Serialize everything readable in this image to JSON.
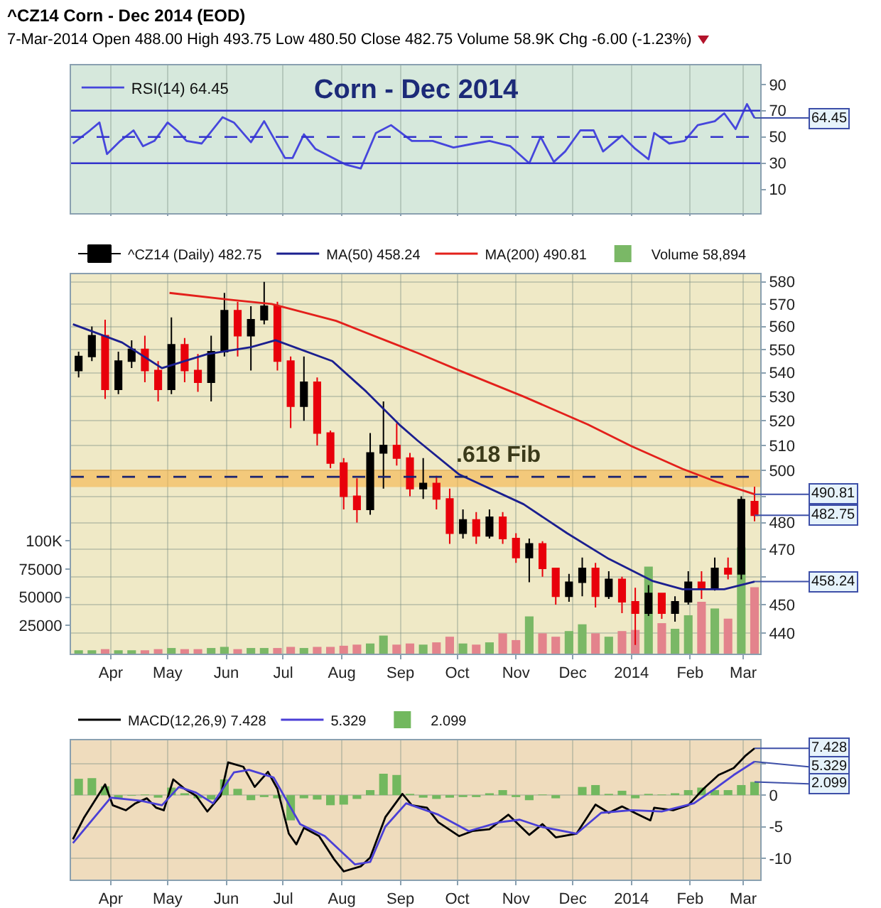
{
  "chart_data": [
    {
      "type": "line",
      "title": "^CZ14 Corn - Dec 2014 (EOD)",
      "subtitle": "7-Mar-2014 Open 488.00 High 493.75 Low 480.50 Close 482.75 Volume 58.9K Chg -6.00 (-1.23%)",
      "annotations": [
        "Corn - Dec 2014",
        {
          "text": "64.45",
          "x": "2014-03-07",
          "y": 64.45
        }
      ],
      "xlim": [
        "2013-03-11",
        "2014-03-10"
      ],
      "xticks": [
        {
          "value": "2013-04-01",
          "label": null
        },
        {
          "value": "2013-05-01",
          "label": null
        },
        {
          "value": "2013-06-01",
          "label": null
        },
        {
          "value": "2013-07-01",
          "label": null
        },
        {
          "value": "2013-08-01",
          "label": null
        },
        {
          "value": "2013-09-01",
          "label": null
        },
        {
          "value": "2013-10-01",
          "label": null
        },
        {
          "value": "2013-11-01",
          "label": null
        },
        {
          "value": "2013-12-01",
          "label": null
        },
        {
          "value": "2014-01-01",
          "label": null
        },
        {
          "value": "2014-02-01",
          "label": null
        },
        {
          "value": "2014-03-01",
          "label": null
        }
      ],
      "ylim": [
        -8,
        104.5
      ],
      "yticks": [
        10,
        30,
        50,
        70,
        90
      ],
      "ref_lines": [
        {
          "axis": "y",
          "value": 70,
          "color": "#3333cc",
          "line_style": "solid"
        },
        {
          "axis": "y",
          "value": 50,
          "color": "#3333cc",
          "line_style": "dashed"
        },
        {
          "axis": "y",
          "value": 30,
          "color": "#3333cc",
          "line_style": "solid"
        }
      ],
      "series": [
        {
          "name": "RSI(14) 64.45",
          "color": "#4646dc",
          "x": [
            "2013-03-12",
            "2013-03-21",
            "2013-03-26",
            "2013-03-30",
            "2013-04-06",
            "2013-04-13",
            "2013-04-18",
            "2013-04-24",
            "2013-05-01",
            "2013-05-06",
            "2013-05-11",
            "2013-05-19",
            "2013-05-30",
            "2013-06-05",
            "2013-06-14",
            "2013-06-21",
            "2013-07-02",
            "2013-07-06",
            "2013-07-12",
            "2013-07-18",
            "2013-07-26",
            "2013-08-03",
            "2013-08-11",
            "2013-08-19",
            "2013-08-27",
            "2013-09-07",
            "2013-09-18",
            "2013-09-29",
            "2013-10-10",
            "2013-10-18",
            "2013-10-29",
            "2013-11-08",
            "2013-11-14",
            "2013-11-21",
            "2013-11-27",
            "2013-12-05",
            "2013-12-12",
            "2013-12-17",
            "2013-12-27",
            "2014-01-03",
            "2014-01-10",
            "2014-01-13",
            "2014-01-21",
            "2014-01-29",
            "2014-02-05",
            "2014-02-14",
            "2014-02-19",
            "2014-02-25",
            "2014-03-03",
            "2014-03-07"
          ],
          "values": [
            45,
            55,
            61,
            37,
            47,
            55,
            43,
            47,
            61,
            55,
            47,
            45,
            65,
            61,
            46,
            62,
            34,
            34,
            52,
            41,
            35,
            29,
            26,
            53,
            59,
            47,
            47,
            42,
            45,
            47,
            43,
            30,
            50,
            31,
            39,
            55,
            55,
            39,
            51,
            41,
            33,
            53,
            45,
            47,
            59,
            62,
            68,
            56,
            75,
            64.45
          ]
        }
      ],
      "grid": "x",
      "legend": "top left",
      "tick_labels": "y"
    },
    {
      "type": "candlestick",
      "annotations": [
        {
          "text": "490.81",
          "x": "2014-03-07",
          "y": 490.81
        },
        {
          "text": "482.75",
          "x": "2014-03-07",
          "y": 482.75
        },
        {
          "text": "458.24",
          "x": "2014-03-07",
          "y": 458.24
        }
      ],
      "x": [
        "2013-03-15",
        "2013-03-22",
        "2013-03-29",
        "2013-04-05",
        "2013-04-12",
        "2013-04-19",
        "2013-04-26",
        "2013-05-03",
        "2013-05-10",
        "2013-05-17",
        "2013-05-24",
        "2013-05-31",
        "2013-06-07",
        "2013-06-14",
        "2013-06-21",
        "2013-06-28",
        "2013-07-05",
        "2013-07-12",
        "2013-07-19",
        "2013-07-26",
        "2013-08-02",
        "2013-08-09",
        "2013-08-16",
        "2013-08-23",
        "2013-08-30",
        "2013-09-06",
        "2013-09-13",
        "2013-09-20",
        "2013-09-27",
        "2013-10-04",
        "2013-10-11",
        "2013-10-18",
        "2013-10-25",
        "2013-11-01",
        "2013-11-08",
        "2013-11-15",
        "2013-11-22",
        "2013-11-29",
        "2013-12-06",
        "2013-12-13",
        "2013-12-20",
        "2013-12-27",
        "2014-01-03",
        "2014-01-10",
        "2014-01-17",
        "2014-01-24",
        "2014-01-31",
        "2014-02-07",
        "2014-02-14",
        "2014-02-21",
        "2014-02-28",
        "2014-03-07"
      ],
      "xlim": [
        "2013-03-11",
        "2014-03-10"
      ],
      "xticks": [
        {
          "value": "2013-04-01",
          "label": "Apr"
        },
        {
          "value": "2013-05-01",
          "label": "May"
        },
        {
          "value": "2013-06-01",
          "label": "Jun"
        },
        {
          "value": "2013-07-01",
          "label": "Jul"
        },
        {
          "value": "2013-08-01",
          "label": "Aug"
        },
        {
          "value": "2013-09-01",
          "label": "Sep"
        },
        {
          "value": "2013-10-01",
          "label": "Oct"
        },
        {
          "value": "2013-11-01",
          "label": "Nov"
        },
        {
          "value": "2013-12-01",
          "label": "Dec"
        },
        {
          "value": "2014-01-01",
          "label": "2014"
        },
        {
          "value": "2014-02-01",
          "label": "Feb"
        },
        {
          "value": "2014-03-01",
          "label": "Mar"
        }
      ],
      "ylim": [
        433,
        583.5
      ],
      "yticks": [
        440,
        450,
        {
          "value": 460,
          "label": null
        },
        470,
        480,
        {
          "value": 490,
          "label": null
        },
        500,
        510,
        520,
        530,
        540,
        550,
        560,
        570,
        580
      ],
      "log": "y",
      "y2lim": [
        0,
        336000
      ],
      "y2ticks": [
        25000,
        50000,
        75000,
        {
          "value": 100000,
          "label": "100K"
        }
      ],
      "bands": [
        {
          "axis": "y",
          "from": 494,
          "to": 500,
          "label": ".618 Fib",
          "color": "#f7b54a"
        }
      ],
      "ref_lines": [
        {
          "axis": "y",
          "value": 497.6,
          "color": "#1a2370",
          "line_style": "dashed"
        }
      ],
      "series": [
        {
          "name": "^CZ14 (Daily) 482.75",
          "ohlc": [
            [
              541,
              549,
              538,
              547
            ],
            [
              547,
              560,
              545,
              556
            ],
            [
              556,
              563,
              529,
              533
            ],
            [
              533,
              549,
              531,
              545
            ],
            [
              545,
              554,
              542,
              550
            ],
            [
              550,
              556,
              536,
              541
            ],
            [
              541,
              545,
              528,
              533
            ],
            [
              533,
              564,
              531,
              552
            ],
            [
              552,
              555,
              536,
              541
            ],
            [
              541,
              548,
              532,
              536
            ],
            [
              536,
              556,
              528,
              549
            ],
            [
              549,
              575,
              547,
              567
            ],
            [
              567,
              571,
              547,
              556
            ],
            [
              556,
              569,
              541,
              563
            ],
            [
              563,
              580,
              561,
              569
            ],
            [
              569,
              571,
              541,
              545
            ],
            [
              545,
              547,
              517,
              526
            ],
            [
              526,
              547,
              520,
              536
            ],
            [
              536,
              538,
              510,
              515
            ],
            [
              515,
              516,
              501,
              503
            ],
            [
              503,
              505,
              485,
              490
            ],
            [
              490,
              497,
              480,
              485
            ],
            [
              485,
              515,
              483,
              507
            ],
            [
              507,
              528,
              493,
              510
            ],
            [
              510,
              519,
              502,
              505
            ],
            [
              505,
              507,
              490,
              493
            ],
            [
              493,
              505,
              489,
              495
            ],
            [
              495,
              498,
              485,
              489
            ],
            [
              489,
              493,
              472,
              476
            ],
            [
              476,
              485,
              474,
              481
            ],
            [
              481,
              484,
              472,
              475
            ],
            [
              475,
              485,
              474,
              482
            ],
            [
              482,
              484,
              472,
              474
            ],
            [
              474,
              476,
              465,
              467
            ],
            [
              467,
              474,
              458,
              472
            ],
            [
              472,
              473,
              460,
              463
            ],
            [
              463,
              463,
              450,
              453
            ],
            [
              453,
              461,
              451,
              458
            ],
            [
              458,
              467,
              453,
              463
            ],
            [
              463,
              465,
              449,
              453
            ],
            [
              453,
              462,
              452,
              459
            ],
            [
              459,
              460,
              447,
              451
            ],
            [
              451,
              456,
              436,
              447
            ],
            [
              447,
              457,
              446,
              454
            ],
            [
              454,
              454,
              445,
              447
            ],
            [
              447,
              453,
              444,
              451
            ],
            [
              451,
              462,
              450,
              458
            ],
            [
              458,
              462,
              452,
              456
            ],
            [
              456,
              467,
              455,
              463
            ],
            [
              463,
              467,
              459,
              461
            ],
            [
              461,
              490,
              459,
              488.75
            ],
            [
              488,
              493.75,
              480.5,
              482.75
            ]
          ],
          "colors": [
            "#000000",
            "#000000",
            "#e8000b",
            "#000000",
            "#000000",
            "#e8000b",
            "#e8000b",
            "#000000",
            "#e8000b",
            "#e8000b",
            "#000000",
            "#000000",
            "#e8000b",
            "#000000",
            "#000000",
            "#e8000b",
            "#e8000b",
            "#000000",
            "#e8000b",
            "#e8000b",
            "#e8000b",
            "#e8000b",
            "#000000",
            "#000000",
            "#e8000b",
            "#e8000b",
            "#000000",
            "#e8000b",
            "#e8000b",
            "#000000",
            "#e8000b",
            "#000000",
            "#e8000b",
            "#e8000b",
            "#000000",
            "#e8000b",
            "#e8000b",
            "#000000",
            "#000000",
            "#e8000b",
            "#000000",
            "#e8000b",
            "#e8000b",
            "#000000",
            "#e8000b",
            "#000000",
            "#000000",
            "#e8000b",
            "#000000",
            "#e8000b",
            "#000000",
            "#e8000b"
          ]
        },
        {
          "name": "MA(50) 458.24",
          "type": "line",
          "color": "#1b1f8f",
          "x": [
            "2013-03-12",
            "2013-04-07",
            "2013-04-28",
            "2013-05-22",
            "2013-06-14",
            "2013-06-27",
            "2013-07-27",
            "2013-08-14",
            "2013-09-01",
            "2013-09-10",
            "2013-10-02",
            "2013-11-05",
            "2013-11-28",
            "2013-12-20",
            "2014-01-12",
            "2014-01-28",
            "2014-02-19",
            "2014-03-07"
          ],
          "values": [
            561,
            553,
            542,
            548,
            551,
            554,
            545,
            532,
            518,
            512,
            498.5,
            487,
            476,
            466.5,
            458.5,
            455.5,
            455.5,
            458.24
          ]
        },
        {
          "name": "MA(200) 490.81",
          "type": "line",
          "color": "#e3201b",
          "x": [
            "2013-05-02",
            "2013-06-02",
            "2013-06-25",
            "2013-07-29",
            "2013-08-27",
            "2013-09-10",
            "2013-10-02",
            "2013-11-05",
            "2013-12-09",
            "2014-01-01",
            "2014-01-28",
            "2014-02-15",
            "2014-03-07"
          ],
          "values": [
            575,
            572,
            570,
            562.5,
            553,
            548.5,
            541,
            530,
            518.5,
            509.7,
            500.7,
            495.6,
            490.81
          ]
        },
        {
          "name": "Volume 58,894",
          "type": "bar",
          "axis": "y2",
          "values": [
            3000,
            3000,
            4000,
            3000,
            3000,
            3000,
            4000,
            5000,
            4000,
            4000,
            5000,
            6000,
            4000,
            5000,
            5000,
            5000,
            6000,
            5000,
            6000,
            6000,
            7000,
            8000,
            9000,
            16000,
            8000,
            9000,
            8000,
            10000,
            15000,
            9000,
            8000,
            10000,
            18000,
            12000,
            33000,
            18000,
            15000,
            20000,
            26000,
            18000,
            15000,
            20000,
            21000,
            77000,
            27000,
            22000,
            34000,
            46000,
            40000,
            31000,
            94000,
            58894
          ],
          "colors": [
            "#7ab866",
            "#7ab866",
            "#e3838c",
            "#7ab866",
            "#7ab866",
            "#e3838c",
            "#e3838c",
            "#7ab866",
            "#e3838c",
            "#e3838c",
            "#7ab866",
            "#7ab866",
            "#e3838c",
            "#7ab866",
            "#7ab866",
            "#e3838c",
            "#e3838c",
            "#7ab866",
            "#e3838c",
            "#e3838c",
            "#e3838c",
            "#e3838c",
            "#7ab866",
            "#7ab866",
            "#e3838c",
            "#e3838c",
            "#7ab866",
            "#e3838c",
            "#e3838c",
            "#7ab866",
            "#e3838c",
            "#7ab866",
            "#e3838c",
            "#e3838c",
            "#7ab866",
            "#e3838c",
            "#e3838c",
            "#7ab866",
            "#7ab866",
            "#e3838c",
            "#7ab866",
            "#e3838c",
            "#e3838c",
            "#7ab866",
            "#e3838c",
            "#7ab866",
            "#7ab866",
            "#e3838c",
            "#7ab866",
            "#e3838c",
            "#7ab866",
            "#e3838c"
          ]
        }
      ],
      "grid": true,
      "legend": "top left"
    },
    {
      "type": "line",
      "annotations": [
        {
          "text": "7.428",
          "x": "2014-03-07",
          "y": 7.428
        },
        {
          "text": "5.329",
          "x": "2014-03-07",
          "y": 5.329
        },
        {
          "text": "2.099",
          "x": "2014-03-07",
          "y": 2.099
        }
      ],
      "x": [
        "2013-03-15",
        "2013-03-22",
        "2013-03-29",
        "2013-04-05",
        "2013-04-12",
        "2013-04-19",
        "2013-04-26",
        "2013-05-03",
        "2013-05-10",
        "2013-05-17",
        "2013-05-24",
        "2013-05-31",
        "2013-06-07",
        "2013-06-14",
        "2013-06-21",
        "2013-06-28",
        "2013-07-05",
        "2013-07-12",
        "2013-07-19",
        "2013-07-26",
        "2013-08-02",
        "2013-08-09",
        "2013-08-16",
        "2013-08-23",
        "2013-08-30",
        "2013-09-06",
        "2013-09-13",
        "2013-09-20",
        "2013-09-27",
        "2013-10-04",
        "2013-10-11",
        "2013-10-18",
        "2013-10-25",
        "2013-11-01",
        "2013-11-08",
        "2013-11-15",
        "2013-11-22",
        "2013-11-29",
        "2013-12-06",
        "2013-12-13",
        "2013-12-20",
        "2013-12-27",
        "2014-01-03",
        "2014-01-10",
        "2014-01-17",
        "2014-01-24",
        "2014-01-31",
        "2014-02-07",
        "2014-02-14",
        "2014-02-21",
        "2014-02-28",
        "2014-03-07"
      ],
      "xlim": [
        "2013-03-11",
        "2014-03-10"
      ],
      "xticks": [
        {
          "value": "2013-04-01",
          "label": "Apr"
        },
        {
          "value": "2013-05-01",
          "label": "May"
        },
        {
          "value": "2013-06-01",
          "label": "Jun"
        },
        {
          "value": "2013-07-01",
          "label": "Jul"
        },
        {
          "value": "2013-08-01",
          "label": "Aug"
        },
        {
          "value": "2013-09-01",
          "label": "Sep"
        },
        {
          "value": "2013-10-01",
          "label": "Oct"
        },
        {
          "value": "2013-11-01",
          "label": "Nov"
        },
        {
          "value": "2013-12-01",
          "label": "Dec"
        },
        {
          "value": "2014-01-01",
          "label": "2014"
        },
        {
          "value": "2014-02-01",
          "label": "Feb"
        },
        {
          "value": "2014-03-01",
          "label": "Mar"
        }
      ],
      "ylim": [
        -13.4,
        8.7
      ],
      "yticks": [
        -10,
        -5,
        0,
        {
          "value": 5,
          "label": null
        }
      ],
      "series": [
        {
          "name": "MACD(12,26,9) 7.428",
          "color": "#000000",
          "x": [
            "2013-03-12",
            "2013-03-18",
            "2013-03-29",
            "2013-04-02",
            "2013-04-09",
            "2013-04-14",
            "2013-04-20",
            "2013-04-25",
            "2013-04-29",
            "2013-05-04",
            "2013-05-10",
            "2013-05-16",
            "2013-05-22",
            "2013-05-29",
            "2013-06-02",
            "2013-06-10",
            "2013-06-16",
            "2013-06-23",
            "2013-06-28",
            "2013-07-04",
            "2013-07-08",
            "2013-07-12",
            "2013-07-20",
            "2013-07-28",
            "2013-08-02",
            "2013-08-11",
            "2013-08-16",
            "2013-08-24",
            "2013-09-02",
            "2013-09-07",
            "2013-09-15",
            "2013-09-21",
            "2013-10-02",
            "2013-10-09",
            "2013-10-18",
            "2013-10-28",
            "2013-11-08",
            "2013-11-15",
            "2013-11-22",
            "2013-12-03",
            "2013-12-13",
            "2013-12-20",
            "2013-12-27",
            "2014-01-04",
            "2014-01-11",
            "2014-01-13",
            "2014-01-23",
            "2014-01-31",
            "2014-02-08",
            "2014-02-16",
            "2014-02-24",
            "2014-03-02",
            "2014-03-07"
          ],
          "values": [
            -7.0,
            -3.5,
            1.7,
            -1.6,
            -2.4,
            -1.3,
            -0.5,
            -2.0,
            -2.4,
            2.5,
            1.0,
            -0.1,
            -2.6,
            -0.1,
            5.2,
            4.5,
            1.3,
            3.7,
            1.0,
            -6.1,
            -7.8,
            -5.2,
            -6.5,
            -10.2,
            -12.1,
            -11.3,
            -9.9,
            -3.5,
            0.2,
            -1.6,
            -2.0,
            -4.3,
            -6.5,
            -5.7,
            -5.4,
            -3.1,
            -6.3,
            -4.6,
            -6.7,
            -6.1,
            -1.5,
            -2.8,
            -1.8,
            -3.0,
            -4.0,
            -2.0,
            -2.4,
            -1.6,
            1.0,
            3.2,
            4.3,
            6.2,
            7.428
          ]
        },
        {
          "name": "5.329",
          "color": "#4a3fd6",
          "x": [
            "2013-03-12",
            "2013-04-01",
            "2013-04-17",
            "2013-04-28",
            "2013-05-07",
            "2013-05-16",
            "2013-05-25",
            "2013-06-05",
            "2013-06-13",
            "2013-06-26",
            "2013-07-10",
            "2013-07-23",
            "2013-08-08",
            "2013-08-16",
            "2013-08-24",
            "2013-09-04",
            "2013-09-21",
            "2013-10-07",
            "2013-10-23",
            "2013-11-03",
            "2013-11-14",
            "2013-12-03",
            "2013-12-16",
            "2014-01-01",
            "2014-01-17",
            "2014-02-03",
            "2014-02-14",
            "2014-02-24",
            "2014-03-07"
          ],
          "values": [
            -7.6,
            -0.4,
            -0.9,
            -1.6,
            1.3,
            0.4,
            -1.3,
            3.6,
            4.0,
            2.8,
            -4.6,
            -6.5,
            -11.0,
            -10.6,
            -5.0,
            -1.3,
            -3.1,
            -5.7,
            -4.3,
            -3.9,
            -5.0,
            -6.1,
            -2.8,
            -2.4,
            -2.6,
            -1.3,
            1.0,
            3.2,
            5.329
          ]
        },
        {
          "name": "2.099",
          "type": "bar",
          "color": "#72b85e",
          "values": [
            2.6,
            2.7,
            1.4,
            -0.6,
            -0.1,
            0.1,
            -0.4,
            1.2,
            0.3,
            -0.5,
            -0.7,
            2.5,
            1.0,
            -0.8,
            -0.3,
            -0.5,
            -4.0,
            -0.5,
            -0.7,
            -1.6,
            -1.5,
            -0.6,
            0.8,
            3.4,
            3.2,
            0.2,
            -0.4,
            -0.6,
            -0.4,
            -0.3,
            -0.3,
            0.3,
            0.8,
            -0.3,
            -0.8,
            0.1,
            -0.5,
            0.0,
            1.3,
            1.6,
            0.2,
            0.7,
            -0.5,
            0.2,
            0.1,
            0.3,
            0.8,
            1.2,
            0.8,
            0.8,
            1.6,
            2.099
          ]
        }
      ],
      "grid": true,
      "legend": "top left"
    }
  ]
}
